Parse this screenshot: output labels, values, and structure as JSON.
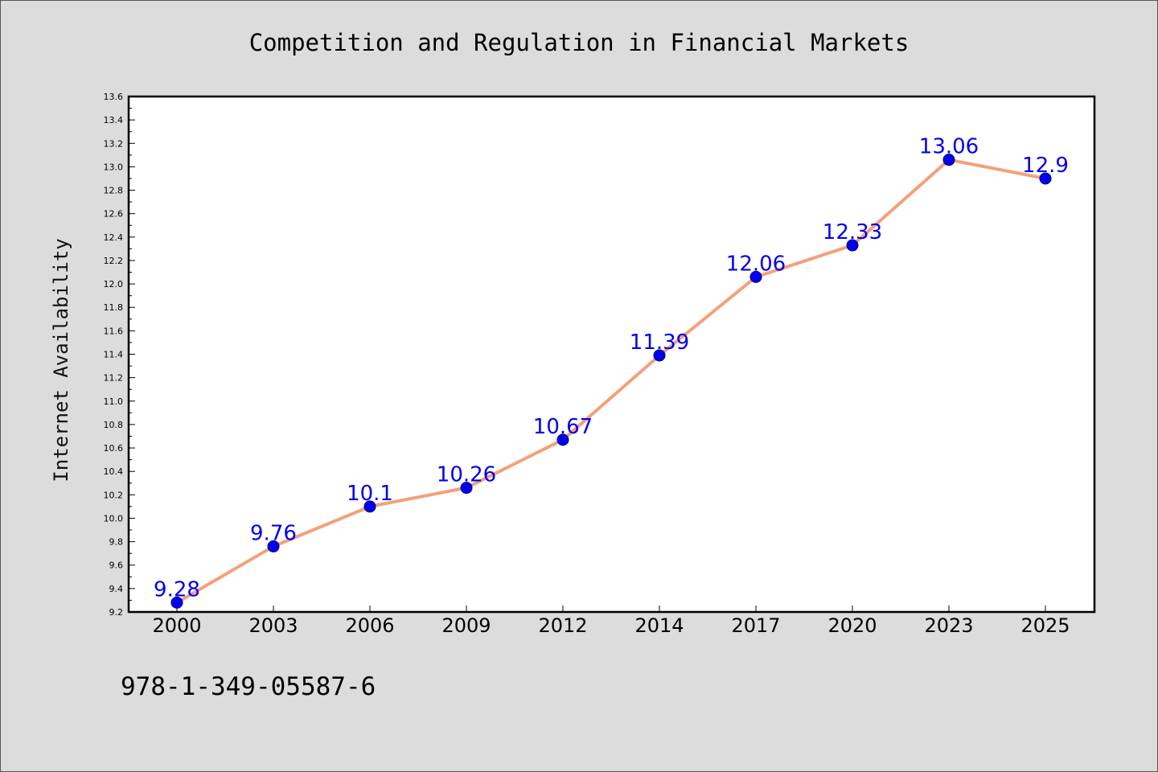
{
  "chart_data": {
    "type": "line",
    "title": "Competition and Regulation in Financial Markets",
    "xlabel": "",
    "ylabel": "Internet Availability",
    "categories": [
      "2000",
      "2003",
      "2006",
      "2009",
      "2012",
      "2014",
      "2017",
      "2020",
      "2023",
      "2025"
    ],
    "values": [
      9.28,
      9.76,
      10.1,
      10.26,
      10.67,
      11.39,
      12.06,
      12.33,
      13.06,
      12.9
    ],
    "data_labels": [
      "9.28",
      "9.76",
      "10.1",
      "10.26",
      "10.67",
      "11.39",
      "12.06",
      "12.33",
      "13.06",
      "12.9"
    ],
    "ylim": [
      9.2,
      13.6
    ],
    "yticks": [
      "9.2",
      "9.4",
      "9.6",
      "9.8",
      "10.0",
      "10.2",
      "10.4",
      "10.6",
      "10.8",
      "11.0",
      "11.2",
      "11.4",
      "11.6",
      "11.8",
      "12.0",
      "12.2",
      "12.4",
      "12.6",
      "12.8",
      "13.0",
      "13.2",
      "13.4",
      "13.6"
    ],
    "grid": false,
    "legend": "none",
    "colors": {
      "line": "#f4a07a",
      "marker": "#0000ee",
      "marker_edge": "#00008b",
      "label": "#0000ee",
      "plot_bg": "#ffffff",
      "figure_bg": "#dcdcdc"
    }
  },
  "footer": {
    "isbn": "978-1-349-05587-6"
  }
}
